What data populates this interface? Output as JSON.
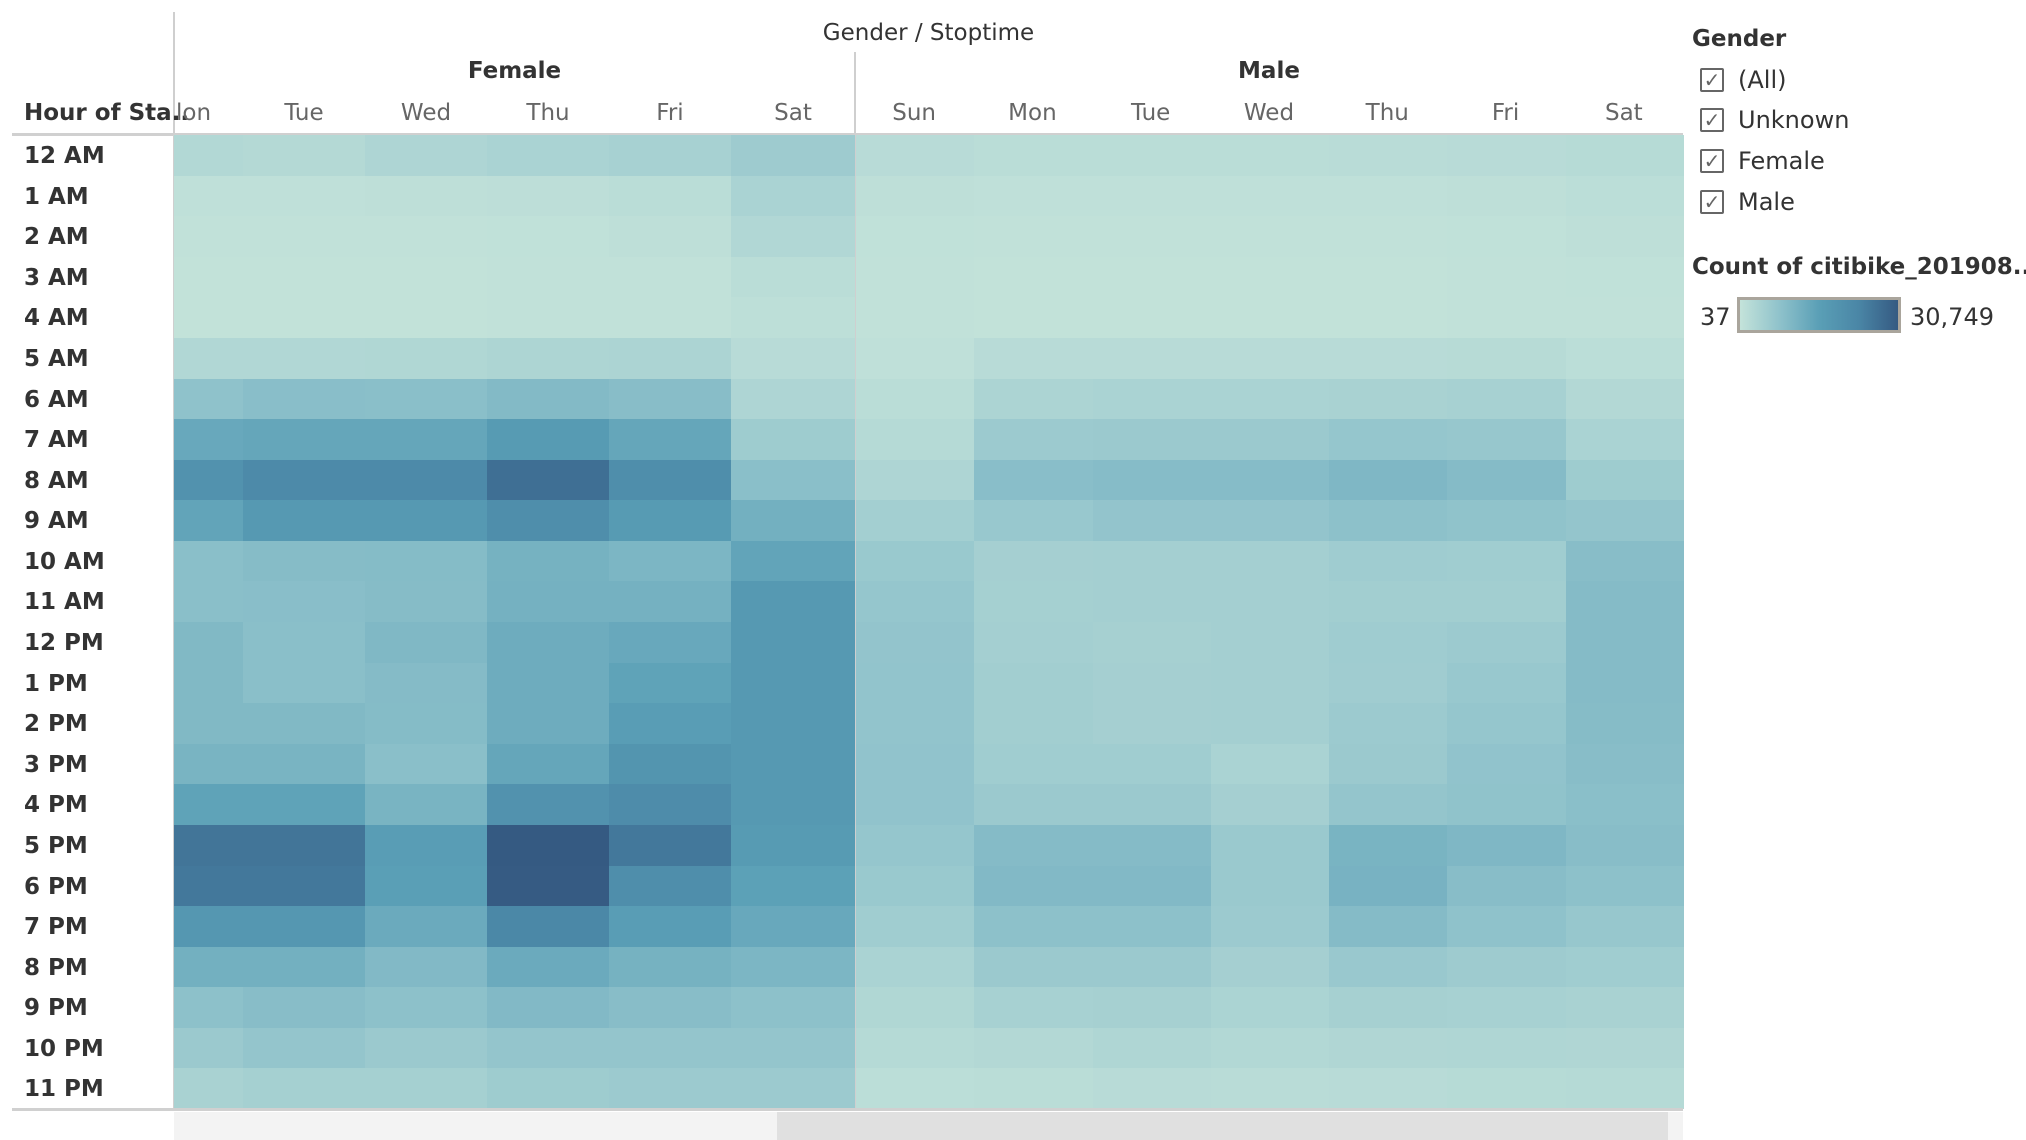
{
  "header": {
    "title": "Gender / Stoptime",
    "row_header": "Hour of Sta.."
  },
  "legend": {
    "filter_title": "Gender",
    "filter_items": [
      {
        "label": "(All)",
        "checked": true
      },
      {
        "label": "Unknown",
        "checked": true
      },
      {
        "label": "Female",
        "checked": true
      },
      {
        "label": "Male",
        "checked": true
      }
    ],
    "color_title": "Count of citibike_201908...",
    "color_min": "37",
    "color_max": "30,749",
    "color_min_hex": "#c4e3da",
    "color_max_hex": "#355a82"
  },
  "chart_data": {
    "type": "heatmap",
    "title": "Gender / Stoptime",
    "xlabel": "Gender / Stoptime",
    "ylabel": "Hour of Starttime",
    "legend_title": "Count of citibike_201908...",
    "color_range": [
      37,
      30749
    ],
    "groups": [
      {
        "name": "Female",
        "visible_days": [
          "Mon",
          "Tue",
          "Wed",
          "Thu",
          "Fri",
          "Sat"
        ],
        "partial_first_label": "lon"
      },
      {
        "name": "Male",
        "visible_days": [
          "Sun",
          "Mon",
          "Tue",
          "Wed",
          "Thu",
          "Fri",
          "Sat"
        ]
      }
    ],
    "rows": [
      "12 AM",
      "1 AM",
      "2 AM",
      "3 AM",
      "4 AM",
      "5 AM",
      "6 AM",
      "7 AM",
      "8 AM",
      "9 AM",
      "10 AM",
      "11 AM",
      "12 PM",
      "1 PM",
      "2 PM",
      "3 PM",
      "4 PM",
      "5 PM",
      "6 PM",
      "7 PM",
      "8 PM",
      "9 PM",
      "10 PM",
      "11 PM"
    ],
    "values_female": [
      [
        2600,
        2400,
        3200,
        3800,
        4200,
        5600
      ],
      [
        800,
        700,
        900,
        1100,
        1500,
        3800
      ],
      [
        500,
        400,
        500,
        600,
        900,
        2800
      ],
      [
        300,
        300,
        300,
        400,
        500,
        1500
      ],
      [
        300,
        300,
        300,
        400,
        400,
        1000
      ],
      [
        2800,
        2800,
        2900,
        3400,
        3500,
        1800
      ],
      [
        7800,
        8700,
        8500,
        9800,
        9000,
        3200
      ],
      [
        14500,
        15000,
        15000,
        18000,
        15000,
        5500
      ],
      [
        20000,
        22000,
        22000,
        27000,
        21000,
        8600
      ],
      [
        15500,
        18500,
        18500,
        21000,
        18000,
        12500
      ],
      [
        8500,
        9300,
        9400,
        12000,
        11000,
        15500
      ],
      [
        8600,
        8700,
        9300,
        12200,
        12300,
        18500
      ],
      [
        10200,
        8600,
        10300,
        13500,
        14500,
        18500
      ],
      [
        10200,
        8600,
        9500,
        13500,
        16000,
        18500
      ],
      [
        10200,
        10200,
        9400,
        13500,
        17500,
        18500
      ],
      [
        11500,
        11500,
        8600,
        15000,
        19500,
        18500
      ],
      [
        16000,
        16000,
        11500,
        20000,
        21500,
        18500
      ],
      [
        26000,
        26000,
        17500,
        30749,
        25500,
        18000
      ],
      [
        25500,
        25500,
        17000,
        30500,
        21000,
        16500
      ],
      [
        19000,
        19000,
        14000,
        22500,
        17500,
        14500
      ],
      [
        12500,
        12500,
        10000,
        14000,
        12000,
        11000
      ],
      [
        8000,
        9000,
        8000,
        10000,
        9000,
        8000
      ],
      [
        6000,
        7000,
        6000,
        7000,
        7000,
        7000
      ],
      [
        4000,
        4500,
        4500,
        5500,
        5800,
        5800
      ]
    ],
    "values_male": [
      [
        1800,
        1500,
        1500,
        1500,
        1600,
        1800,
        2000
      ],
      [
        900,
        700,
        700,
        700,
        800,
        900,
        1300
      ],
      [
        600,
        500,
        500,
        500,
        500,
        600,
        900
      ],
      [
        500,
        300,
        300,
        300,
        300,
        400,
        600
      ],
      [
        500,
        300,
        300,
        300,
        300,
        400,
        500
      ],
      [
        700,
        1800,
        1800,
        1800,
        1800,
        1900,
        1300
      ],
      [
        1500,
        3500,
        3800,
        3800,
        4000,
        4200,
        2500
      ],
      [
        2200,
        5800,
        6000,
        6000,
        6800,
        6500,
        3800
      ],
      [
        3200,
        8800,
        9200,
        9200,
        10500,
        9500,
        5500
      ],
      [
        4800,
        6400,
        7200,
        7200,
        8000,
        7500,
        7000
      ],
      [
        6200,
        4600,
        4700,
        4700,
        5400,
        5200,
        9000
      ],
      [
        6800,
        4500,
        4700,
        4700,
        5000,
        5000,
        9500
      ],
      [
        7200,
        4700,
        4400,
        4700,
        5400,
        5900,
        9500
      ],
      [
        7300,
        5000,
        4600,
        4700,
        5300,
        6400,
        9500
      ],
      [
        7300,
        5000,
        4600,
        4700,
        5800,
        6900,
        9300
      ],
      [
        7400,
        5200,
        5200,
        3800,
        6000,
        7400,
        9000
      ],
      [
        7400,
        6000,
        6000,
        4600,
        7000,
        7500,
        8500
      ],
      [
        6900,
        9500,
        9500,
        6100,
        11500,
        10500,
        9000
      ],
      [
        6200,
        10000,
        10000,
        6100,
        11800,
        9000,
        8000
      ],
      [
        5200,
        8000,
        8000,
        5800,
        9500,
        7800,
        6500
      ],
      [
        3800,
        6000,
        6000,
        4600,
        6300,
        5600,
        5200
      ],
      [
        2900,
        4200,
        4400,
        3600,
        4400,
        4200,
        3900
      ],
      [
        2200,
        2500,
        3100,
        2600,
        3000,
        3100,
        3000
      ],
      [
        1300,
        1500,
        1800,
        1700,
        1800,
        2000,
        2200
      ]
    ]
  }
}
